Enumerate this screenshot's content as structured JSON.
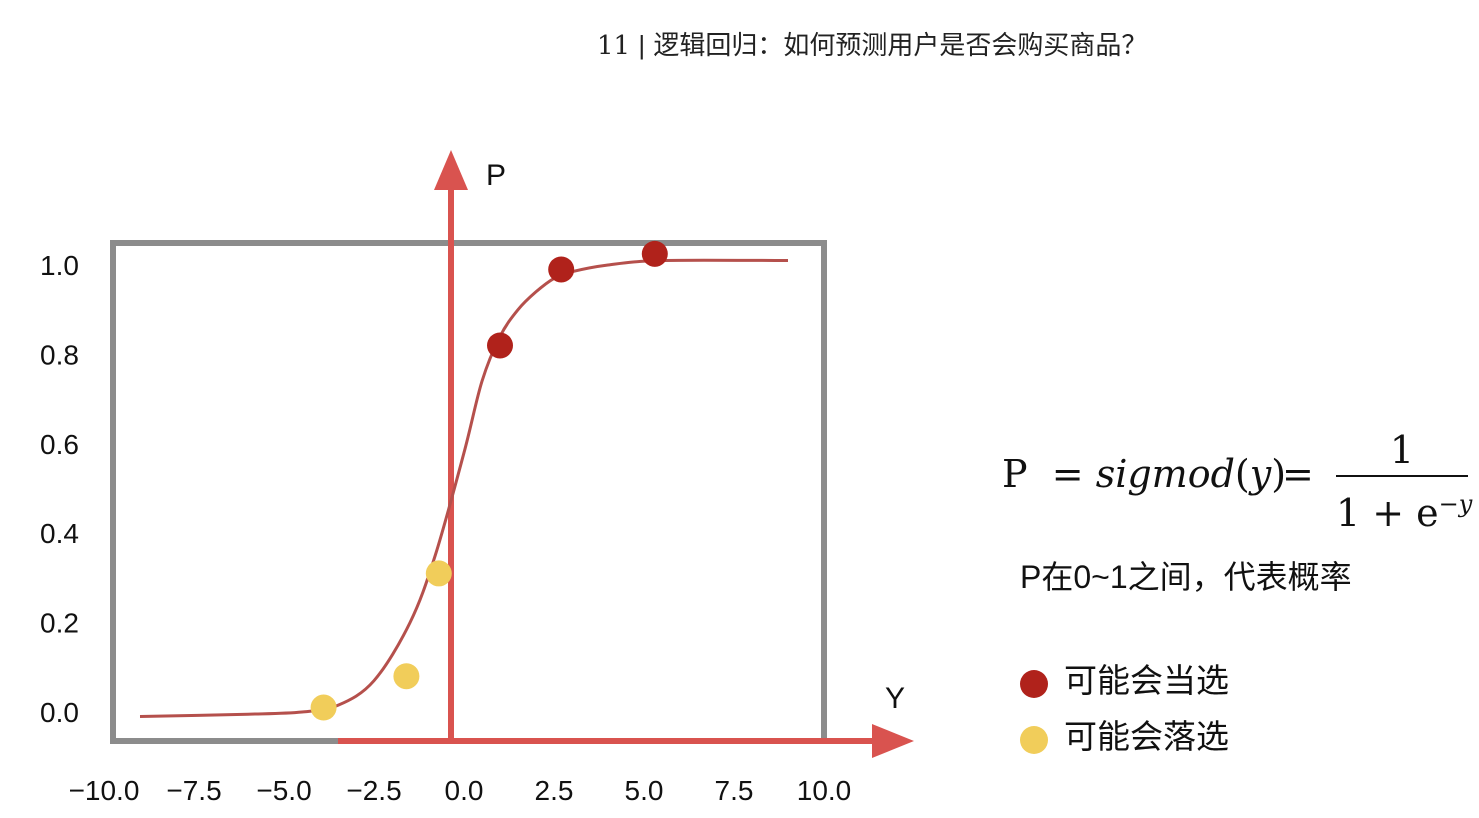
{
  "header": {
    "number": "11",
    "separator": "|",
    "title": "逻辑回归：如何预测用户是否会购买商品？"
  },
  "chart_data": {
    "type": "line",
    "xlabel": "Y",
    "ylabel": "P",
    "xlim": [
      -10.0,
      10.0
    ],
    "ylim": [
      0.0,
      1.0
    ],
    "x_ticks": [
      "−10.0",
      "−7.5",
      "−5.0",
      "−2.5",
      "0.0",
      "2.5",
      "5.0",
      "7.5",
      "10.0"
    ],
    "y_ticks": [
      "0.0",
      "0.2",
      "0.4",
      "0.6",
      "0.8",
      "1.0"
    ],
    "curve": {
      "x": [
        -9.0,
        -6.0,
        -4.5,
        -3.5,
        -2.5,
        -1.5,
        -0.8,
        0.0,
        0.5,
        1.0,
        1.5,
        2.0,
        2.5,
        3.0,
        4.0,
        5.5,
        9.0
      ],
      "y": [
        -0.01,
        -0.005,
        0.0,
        0.015,
        0.07,
        0.2,
        0.35,
        0.58,
        0.74,
        0.84,
        0.9,
        0.94,
        0.97,
        0.985,
        1.0,
        1.01,
        1.01
      ]
    },
    "points": [
      {
        "x": 1.0,
        "y": 0.82,
        "class": "win"
      },
      {
        "x": 2.7,
        "y": 0.99,
        "class": "win"
      },
      {
        "x": 5.3,
        "y": 1.025,
        "class": "win"
      },
      {
        "x": -3.9,
        "y": 0.01,
        "class": "lose"
      },
      {
        "x": -1.6,
        "y": 0.08,
        "class": "lose"
      },
      {
        "x": -0.7,
        "y": 0.31,
        "class": "lose"
      }
    ],
    "grid": false,
    "legend": "right"
  },
  "colors": {
    "axis_arrow": "#d9534f",
    "frame": "#8c8c8c",
    "curve": "#b5504c",
    "win": "#b0221b",
    "lose": "#f1cd5a"
  },
  "formula": {
    "lhs_var": "P",
    "eq": "=",
    "func": "sigmod",
    "arg": "y",
    "eq2": "=",
    "numerator": "1",
    "denominator": "1 + e",
    "exponent": "−y"
  },
  "note": "P在0~1之间，代表概率",
  "legend": [
    {
      "label": "可能会当选",
      "color_key": "win"
    },
    {
      "label": "可能会落选",
      "color_key": "lose"
    }
  ]
}
